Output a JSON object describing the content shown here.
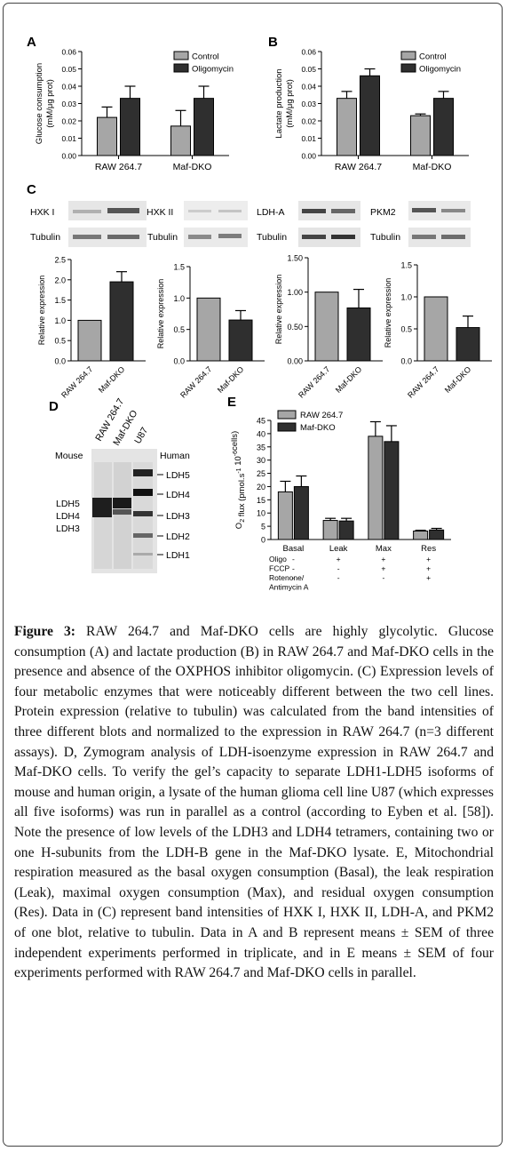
{
  "panel_letters": {
    "a": "A",
    "b": "B",
    "c": "C",
    "d": "D",
    "e": "E"
  },
  "colors": {
    "control": "#a6a6a6",
    "treat": "#2f2f2f",
    "border": "#444444"
  },
  "chart_data": [
    {
      "id": "A",
      "type": "bar",
      "ylabel": "Glucose consumption\n(mM/μg prot)",
      "ylabel_lines": [
        "Glucose consumption",
        "(mM/μg prot)"
      ],
      "ylim": [
        0,
        0.06
      ],
      "yticks": [
        "0.00",
        "0.01",
        "0.02",
        "0.03",
        "0.04",
        "0.05",
        "0.06"
      ],
      "categories": [
        "RAW 264.7",
        "Maf-DKO"
      ],
      "series": [
        {
          "name": "Control",
          "values": [
            0.022,
            0.017
          ],
          "errors": [
            0.006,
            0.009
          ]
        },
        {
          "name": "Oligomycin",
          "values": [
            0.033,
            0.033
          ],
          "errors": [
            0.007,
            0.007
          ]
        }
      ],
      "legend": "top-right"
    },
    {
      "id": "B",
      "type": "bar",
      "ylabel_lines": [
        "Lactate production",
        "(mM/μg prot)"
      ],
      "ylim": [
        0,
        0.06
      ],
      "yticks": [
        "0.00",
        "0.01",
        "0.02",
        "0.03",
        "0.04",
        "0.05",
        "0.06"
      ],
      "categories": [
        "RAW 264.7",
        "Maf-DKO"
      ],
      "series": [
        {
          "name": "Control",
          "values": [
            0.033,
            0.023
          ],
          "errors": [
            0.004,
            0.001
          ]
        },
        {
          "name": "Oligomycin",
          "values": [
            0.046,
            0.033
          ],
          "errors": [
            0.004,
            0.004
          ]
        }
      ],
      "legend": "top-right"
    },
    {
      "id": "C1",
      "type": "bar",
      "protein": "HXK I",
      "loading": "Tubulin",
      "ylabel": "Relative expression",
      "ylim": [
        0,
        2.5
      ],
      "yticks": [
        "0.0",
        "0.5",
        "1.0",
        "1.5",
        "2.0",
        "2.5"
      ],
      "categories": [
        "RAW 264.7",
        "Maf-DKO"
      ],
      "values": [
        1.0,
        1.95
      ],
      "errors": [
        0,
        0.25
      ]
    },
    {
      "id": "C2",
      "type": "bar",
      "protein": "HXK II",
      "loading": "Tubulin",
      "ylabel": "Relative expression",
      "ylim": [
        0,
        1.5
      ],
      "yticks": [
        "0.0",
        "0.5",
        "1.0",
        "1.5"
      ],
      "categories": [
        "RAW 264.7",
        "Maf-DKO"
      ],
      "values": [
        1.0,
        0.65
      ],
      "errors": [
        0,
        0.15
      ]
    },
    {
      "id": "C3",
      "type": "bar",
      "protein": "LDH-A",
      "loading": "Tubulin",
      "ylabel": "Relative expression",
      "ylim": [
        0,
        1.5
      ],
      "yticks": [
        "0.00",
        "0.50",
        "1.00",
        "1.50"
      ],
      "categories": [
        "RAW 264.7",
        "Maf-DKO"
      ],
      "values": [
        1.0,
        0.77
      ],
      "errors": [
        0,
        0.27
      ]
    },
    {
      "id": "C4",
      "type": "bar",
      "protein": "PKM2",
      "loading": "Tubulin",
      "ylabel": "Relative expression",
      "ylim": [
        0,
        1.5
      ],
      "yticks": [
        "0.0",
        "0.5",
        "1.0",
        "1.5"
      ],
      "categories": [
        "RAW 264.7",
        "Maf-DKO"
      ],
      "values": [
        1.0,
        0.52
      ],
      "errors": [
        0,
        0.18
      ]
    },
    {
      "id": "E",
      "type": "bar",
      "ylim": [
        0,
        45
      ],
      "yticks": [
        "0",
        "5",
        "10",
        "15",
        "20",
        "25",
        "30",
        "35",
        "40",
        "45"
      ],
      "categories": [
        "Basal",
        "Leak",
        "Max",
        "Res"
      ],
      "series": [
        {
          "name": "RAW 264.7",
          "values": [
            18.0,
            7.2,
            39.0,
            3.2
          ],
          "errors": [
            4.0,
            0.8,
            5.5,
            0.3
          ]
        },
        {
          "name": "Maf-DKO",
          "values": [
            20.0,
            7.0,
            37.0,
            3.6
          ],
          "errors": [
            4.0,
            1.0,
            6.0,
            0.6
          ]
        }
      ],
      "treatments": {
        "rows": [
          {
            "label": "Oligo",
            "values": [
              "-",
              "+",
              "+",
              "+"
            ]
          },
          {
            "label": "FCCP",
            "values": [
              "-",
              "-",
              "+",
              "+"
            ]
          },
          {
            "label": "Rotenone/",
            "values": [
              "-",
              "-",
              "-",
              "+"
            ]
          },
          {
            "label": "Antimycin A",
            "values": [
              "",
              "",
              "",
              ""
            ]
          }
        ]
      },
      "legend": "top-left"
    }
  ],
  "zymogram": {
    "lanes": [
      "RAW 264.7",
      "Maf-DKO",
      "U87"
    ],
    "left_header": "Mouse",
    "right_header": "Human",
    "left_labels": [
      "LDH5",
      "LDH4",
      "LDH3"
    ],
    "right_labels": [
      "LDH5",
      "LDH4",
      "LDH3",
      "LDH2",
      "LDH1"
    ]
  },
  "caption": {
    "label": "Figure 3:",
    "text": " RAW 264.7 and Maf-DKO cells are highly glycolytic. Glucose consumption (A) and lactate production (B) in RAW 264.7 and Maf-DKO cells in the presence and absence of the OXPHOS inhibitor oligomycin. (C) Expression levels of four metabolic enzymes that were noticeably different between the two cell lines. Protein expression (relative to tubulin) was calculated from the band intensities of three different blots and normalized to the expression in RAW 264.7 (n=3 different assays). D, Zymogram analysis of LDH-isoenzyme expression in RAW 264.7 and Maf-DKO cells. To verify the gel’s capacity to separate LDH1-LDH5 isoforms of mouse and human origin, a lysate of the human glioma cell line U87 (which expresses all five isoforms) was run in parallel as a control (according to Eyben et al. [58]). Note the presence of low levels of the LDH3 and LDH4 tetramers, containing two or one H-subunits from the LDH-B gene in the Maf-DKO lysate. E, Mitochondrial respiration measured as the basal oxygen consumption (Basal), the leak respiration (Leak), maximal oxygen consumption (Max), and residual oxygen consumption (Res). Data in (C) represent band intensities of HXK I, HXK II, LDH-A, and PKM2 of one blot, relative to tubulin. Data in A and B represent means ± SEM of three independent experiments performed in triplicate, and in E means ± SEM of four experiments performed with RAW 264.7 and Maf-DKO cells in parallel."
  }
}
